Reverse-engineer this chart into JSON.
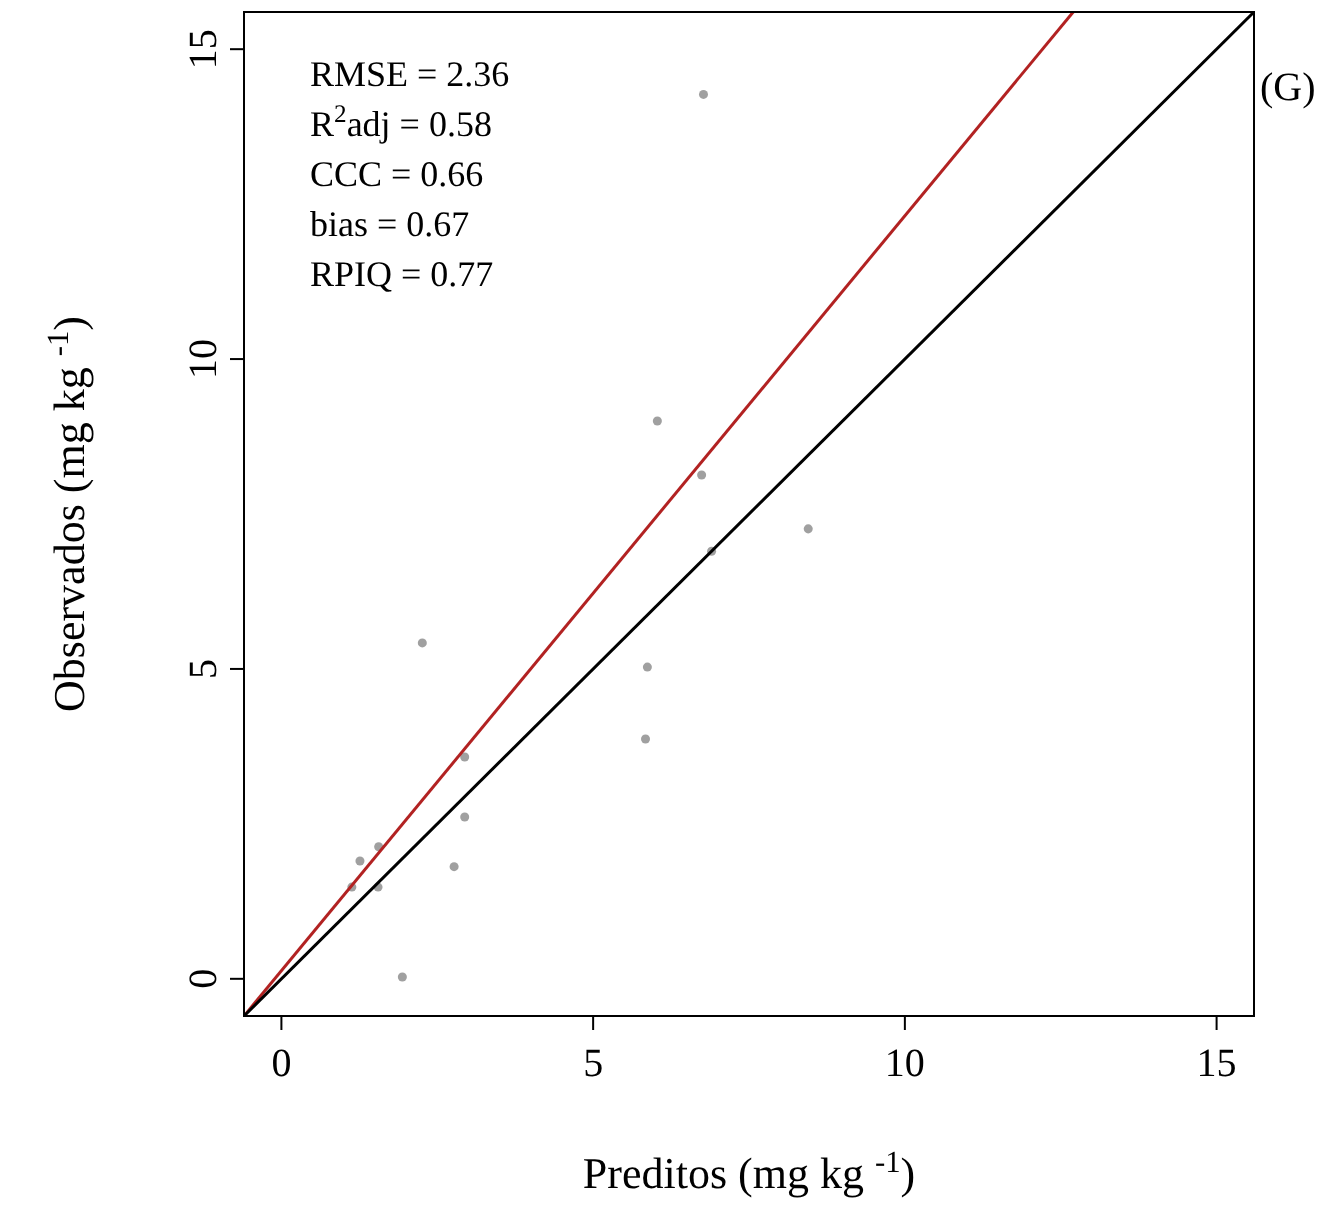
{
  "chart_data": {
    "type": "scatter",
    "xlabel": "Preditos (mg kg $^{-1}$)",
    "ylabel": "Observados (mg kg $^{-1}$)",
    "xlim": [
      -0.6,
      15.6
    ],
    "ylim": [
      -0.6,
      15.6
    ],
    "xticks": [
      0,
      5,
      10,
      15
    ],
    "yticks": [
      0,
      5,
      10,
      15
    ],
    "grid": false,
    "annotations": [
      "RMSE = 2.36",
      "R$^{2}$adj = 0.58",
      "CCC = 0.66",
      "bias = 0.67",
      "RPIQ = 0.77",
      "(G)"
    ],
    "series": [
      {
        "marker": "circle",
        "color": "#a0a0a0",
        "x": [
          6.77,
          6.03,
          6.74,
          6.9,
          8.45,
          2.26,
          5.87,
          5.84,
          2.94,
          2.94,
          1.56,
          1.26,
          1.13,
          1.55,
          2.77,
          1.94
        ],
        "values": [
          14.27,
          9.0,
          8.13,
          6.9,
          7.26,
          5.42,
          5.03,
          3.87,
          3.58,
          2.61,
          2.13,
          1.9,
          1.48,
          1.48,
          1.81,
          0.03
        ]
      },
      {
        "type": "line",
        "color": "#b22222",
        "x": [
          -0.6,
          12.7
        ],
        "values": [
          -0.6,
          15.6
        ]
      },
      {
        "type": "line",
        "color": "#000000",
        "x": [
          -0.6,
          15.6
        ],
        "values": [
          -0.6,
          15.6
        ]
      }
    ]
  }
}
